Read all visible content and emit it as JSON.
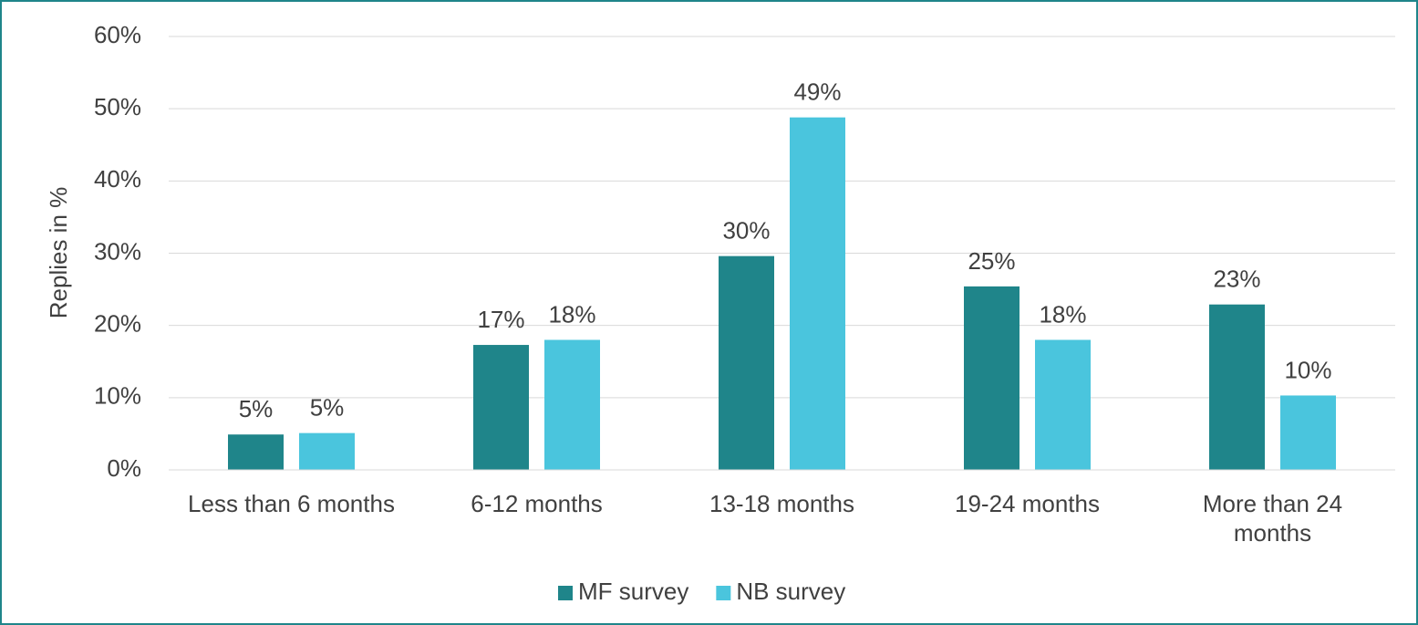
{
  "chart_data": {
    "type": "bar",
    "y_label": "Replies in %",
    "categories": [
      "Less than 6 months",
      "6-12 months",
      "13-18 months",
      "19-24 months",
      "More than 24 months"
    ],
    "series": [
      {
        "name": "MF survey",
        "color": "#1f858a",
        "values": [
          4.9,
          17.3,
          29.6,
          25.4,
          22.9
        ],
        "value_labels": [
          "5%",
          "17%",
          "30%",
          "25%",
          "23%"
        ]
      },
      {
        "name": "NB survey",
        "color": "#4ac5dd",
        "values": [
          5.1,
          18.0,
          48.8,
          18.0,
          10.3
        ],
        "value_labels": [
          "5%",
          "18%",
          "49%",
          "18%",
          "10%"
        ]
      }
    ],
    "ylim": [
      0,
      60
    ],
    "yticks": [
      {
        "value": 0,
        "label": "0%"
      },
      {
        "value": 10,
        "label": "10%"
      },
      {
        "value": 20,
        "label": "20%"
      },
      {
        "value": 30,
        "label": "30%"
      },
      {
        "value": 40,
        "label": "40%"
      },
      {
        "value": 50,
        "label": "50%"
      },
      {
        "value": 60,
        "label": "60%"
      }
    ],
    "grid": true,
    "legend": "bottom"
  }
}
